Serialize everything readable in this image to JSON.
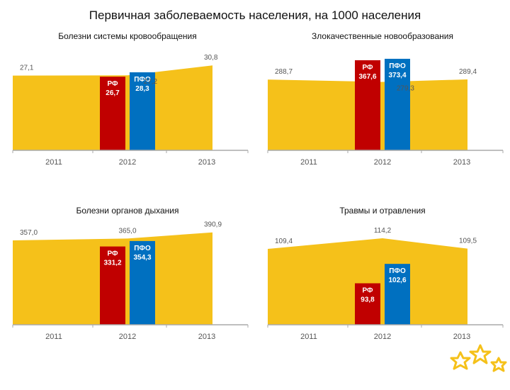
{
  "title": "Первичная заболеваемость населения, на 1000 населения",
  "colors": {
    "area": "#F5C11A",
    "rf_bar": "#C00000",
    "pfo_bar": "#0070C0",
    "axis": "#AAAAAA",
    "label": "#555555",
    "bar_label": "#FFFFFF"
  },
  "chart_data": [
    {
      "type": "area",
      "title": "Болезни системы кровообращения",
      "categories": [
        "2011",
        "2012",
        "2013"
      ],
      "series": [
        {
          "values": [
            27.1,
            27.2,
            30.8
          ],
          "labels": [
            "27,1",
            "27,2",
            "30,8"
          ]
        }
      ],
      "bars": [
        {
          "category": "2012",
          "name": "РФ",
          "value": 26.7,
          "label": "26,7",
          "color": "#C00000"
        },
        {
          "category": "2012",
          "name": "ПФО",
          "value": 28.3,
          "label": "28,3",
          "color": "#0070C0"
        }
      ],
      "ylim": [
        0,
        36
      ]
    },
    {
      "type": "area",
      "title": "Злокачественные новообразования",
      "categories": [
        "2011",
        "2012",
        "2013"
      ],
      "series": [
        {
          "values": [
            288.7,
            279.3,
            289.4
          ],
          "labels": [
            "288,7",
            "279,3",
            "289,4"
          ]
        }
      ],
      "bars": [
        {
          "category": "2012",
          "name": "РФ",
          "value": 367.6,
          "label": "367,6",
          "color": "#C00000"
        },
        {
          "category": "2012",
          "name": "ПФО",
          "value": 373.4,
          "label": "373,4",
          "color": "#0070C0"
        }
      ],
      "ylim": [
        0,
        405
      ]
    },
    {
      "type": "area",
      "title": "Болезни органов дыхания",
      "categories": [
        "2011",
        "2012",
        "2013"
      ],
      "series": [
        {
          "values": [
            357.0,
            365.0,
            390.9
          ],
          "labels": [
            "357,0",
            "365,0",
            "390,9"
          ]
        }
      ],
      "bars": [
        {
          "category": "2012",
          "name": "РФ",
          "value": 331.2,
          "label": "331,2",
          "color": "#C00000"
        },
        {
          "category": "2012",
          "name": "ПФО",
          "value": 354.3,
          "label": "354,3",
          "color": "#0070C0"
        }
      ],
      "ylim": [
        0,
        420
      ]
    },
    {
      "type": "area",
      "title": "Травмы и отравления",
      "categories": [
        "2011",
        "2012",
        "2013"
      ],
      "series": [
        {
          "values": [
            109.4,
            114.2,
            109.5
          ],
          "labels": [
            "109,4",
            "114,2",
            "109,5"
          ]
        }
      ],
      "bars": [
        {
          "category": "2012",
          "name": "РФ",
          "value": 93.8,
          "label": "93,8",
          "color": "#C00000"
        },
        {
          "category": "2012",
          "name": "ПФО",
          "value": 102.6,
          "label": "102,6",
          "color": "#0070C0"
        }
      ],
      "ylim": [
        75,
        120
      ]
    }
  ]
}
